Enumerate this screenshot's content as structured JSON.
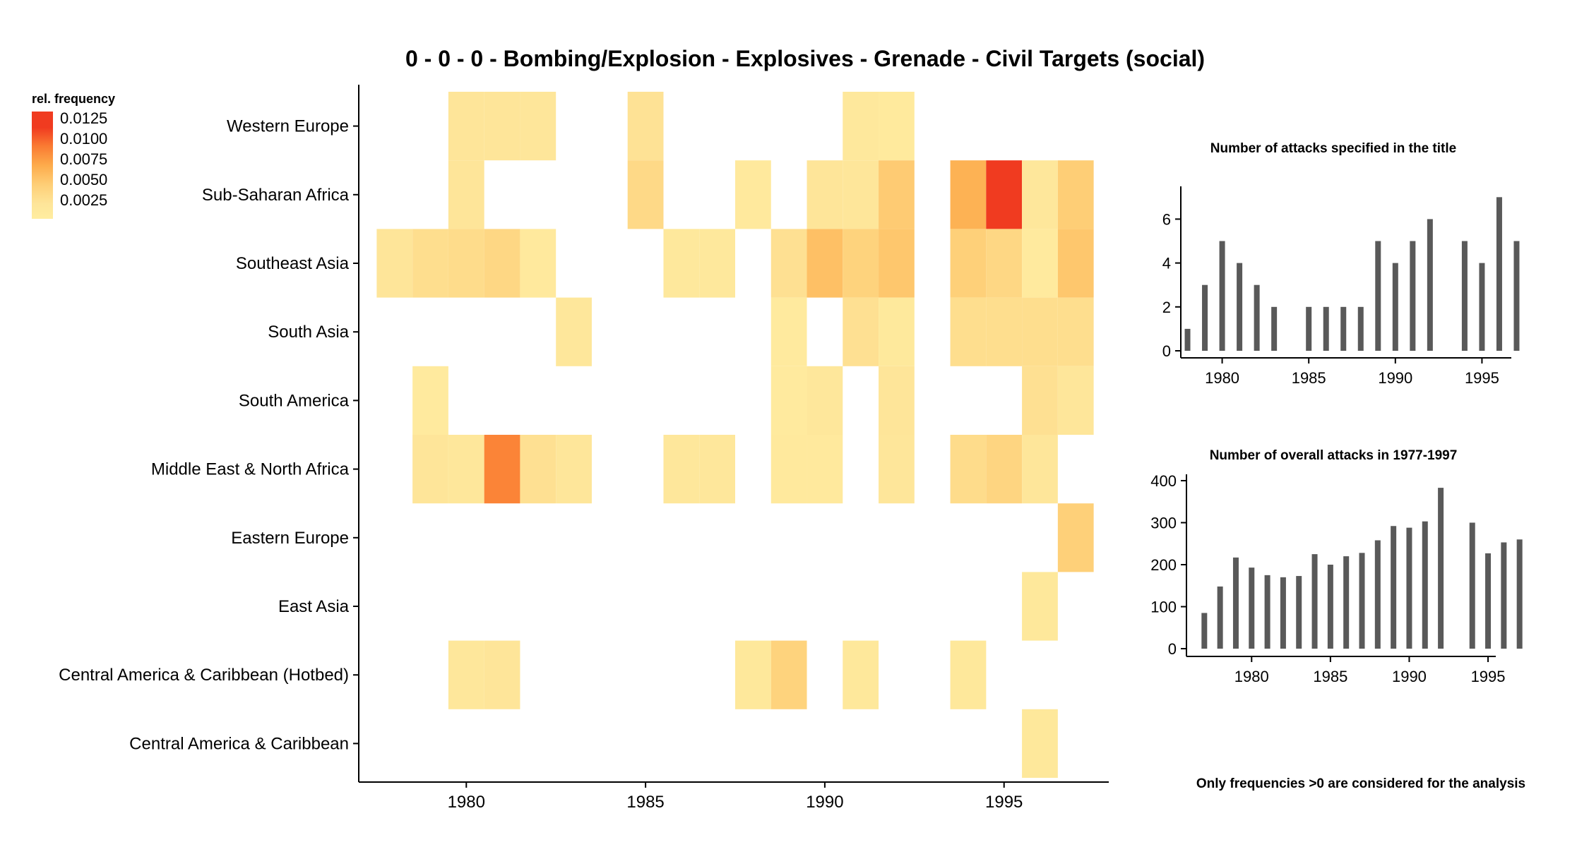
{
  "title": "0 - 0 - 0 - Bombing/Explosion - Explosives - Grenade - Civil Targets (social)",
  "footnote": "Only frequencies >0 are considered for the analysis",
  "legend": {
    "title": "rel. frequency",
    "labels": [
      "0.0125",
      "0.0100",
      "0.0075",
      "0.0050",
      "0.0025"
    ],
    "color_stops": [
      {
        "value": 0.0125,
        "color": "#f03b20"
      },
      {
        "value": 0.01,
        "color": "#fa7a32"
      },
      {
        "value": 0.0075,
        "color": "#fdab4b"
      },
      {
        "value": 0.005,
        "color": "#fece76"
      },
      {
        "value": 0.0025,
        "color": "#fee599"
      },
      {
        "value": 0.0005,
        "color": "#ffeda0"
      }
    ]
  },
  "chart_data": [
    {
      "type": "heatmap",
      "title": "0 - 0 - 0 - Bombing/Explosion - Explosives - Grenade - Civil Targets (social)",
      "xlabel": "",
      "ylabel": "",
      "xlim": [
        1977,
        1998
      ],
      "x_ticks": [
        1980,
        1985,
        1990,
        1995
      ],
      "legend_title": "rel. frequency",
      "legend_position": "top-left",
      "grid": false,
      "regions": [
        "Western Europe",
        "Sub-Saharan Africa",
        "Southeast Asia",
        "South Asia",
        "South America",
        "Middle East & North Africa",
        "Eastern Europe",
        "East Asia",
        "Central America & Caribbean (Hotbed)",
        "Central America & Caribbean"
      ],
      "cells": [
        {
          "region": "Western Europe",
          "year": 1980,
          "value": 0.0025
        },
        {
          "region": "Western Europe",
          "year": 1981,
          "value": 0.0025
        },
        {
          "region": "Western Europe",
          "year": 1982,
          "value": 0.0023
        },
        {
          "region": "Western Europe",
          "year": 1985,
          "value": 0.0028
        },
        {
          "region": "Western Europe",
          "year": 1991,
          "value": 0.0017
        },
        {
          "region": "Western Europe",
          "year": 1992,
          "value": 0.0013
        },
        {
          "region": "Sub-Saharan Africa",
          "year": 1980,
          "value": 0.0025
        },
        {
          "region": "Sub-Saharan Africa",
          "year": 1985,
          "value": 0.0038
        },
        {
          "region": "Sub-Saharan Africa",
          "year": 1988,
          "value": 0.0015
        },
        {
          "region": "Sub-Saharan Africa",
          "year": 1990,
          "value": 0.0025
        },
        {
          "region": "Sub-Saharan Africa",
          "year": 1991,
          "value": 0.0023
        },
        {
          "region": "Sub-Saharan Africa",
          "year": 1992,
          "value": 0.0052
        },
        {
          "region": "Sub-Saharan Africa",
          "year": 1994,
          "value": 0.007
        },
        {
          "region": "Sub-Saharan Africa",
          "year": 1995,
          "value": 0.0135
        },
        {
          "region": "Sub-Saharan Africa",
          "year": 1996,
          "value": 0.002
        },
        {
          "region": "Sub-Saharan Africa",
          "year": 1997,
          "value": 0.005
        },
        {
          "region": "Southeast Asia",
          "year": 1978,
          "value": 0.0025
        },
        {
          "region": "Southeast Asia",
          "year": 1979,
          "value": 0.0033
        },
        {
          "region": "Southeast Asia",
          "year": 1980,
          "value": 0.0035
        },
        {
          "region": "Southeast Asia",
          "year": 1981,
          "value": 0.004
        },
        {
          "region": "Southeast Asia",
          "year": 1982,
          "value": 0.0015
        },
        {
          "region": "Southeast Asia",
          "year": 1986,
          "value": 0.0017
        },
        {
          "region": "Southeast Asia",
          "year": 1987,
          "value": 0.0017
        },
        {
          "region": "Southeast Asia",
          "year": 1989,
          "value": 0.003
        },
        {
          "region": "Southeast Asia",
          "year": 1990,
          "value": 0.006
        },
        {
          "region": "Southeast Asia",
          "year": 1991,
          "value": 0.0045
        },
        {
          "region": "Southeast Asia",
          "year": 1992,
          "value": 0.0055
        },
        {
          "region": "Southeast Asia",
          "year": 1994,
          "value": 0.0048
        },
        {
          "region": "Southeast Asia",
          "year": 1995,
          "value": 0.004
        },
        {
          "region": "Southeast Asia",
          "year": 1996,
          "value": 0.0012
        },
        {
          "region": "Southeast Asia",
          "year": 1997,
          "value": 0.0055
        },
        {
          "region": "South Asia",
          "year": 1983,
          "value": 0.002
        },
        {
          "region": "South Asia",
          "year": 1989,
          "value": 0.0012
        },
        {
          "region": "South Asia",
          "year": 1991,
          "value": 0.003
        },
        {
          "region": "South Asia",
          "year": 1992,
          "value": 0.0016
        },
        {
          "region": "South Asia",
          "year": 1994,
          "value": 0.0033
        },
        {
          "region": "South Asia",
          "year": 1995,
          "value": 0.0033
        },
        {
          "region": "South Asia",
          "year": 1996,
          "value": 0.0033
        },
        {
          "region": "South Asia",
          "year": 1997,
          "value": 0.0033
        },
        {
          "region": "South America",
          "year": 1979,
          "value": 0.0012
        },
        {
          "region": "South America",
          "year": 1989,
          "value": 0.0012
        },
        {
          "region": "South America",
          "year": 1990,
          "value": 0.002
        },
        {
          "region": "South America",
          "year": 1992,
          "value": 0.0025
        },
        {
          "region": "South America",
          "year": 1996,
          "value": 0.003
        },
        {
          "region": "South America",
          "year": 1997,
          "value": 0.0022
        },
        {
          "region": "Middle East & North Africa",
          "year": 1979,
          "value": 0.0025
        },
        {
          "region": "Middle East & North Africa",
          "year": 1980,
          "value": 0.002
        },
        {
          "region": "Middle East & North Africa",
          "year": 1981,
          "value": 0.0095
        },
        {
          "region": "Middle East & North Africa",
          "year": 1982,
          "value": 0.003
        },
        {
          "region": "Middle East & North Africa",
          "year": 1983,
          "value": 0.0022
        },
        {
          "region": "Middle East & North Africa",
          "year": 1986,
          "value": 0.002
        },
        {
          "region": "Middle East & North Africa",
          "year": 1987,
          "value": 0.002
        },
        {
          "region": "Middle East & North Africa",
          "year": 1989,
          "value": 0.0015
        },
        {
          "region": "Middle East & North Africa",
          "year": 1990,
          "value": 0.0015
        },
        {
          "region": "Middle East & North Africa",
          "year": 1992,
          "value": 0.0022
        },
        {
          "region": "Middle East & North Africa",
          "year": 1994,
          "value": 0.0035
        },
        {
          "region": "Middle East & North Africa",
          "year": 1995,
          "value": 0.0042
        },
        {
          "region": "Middle East & North Africa",
          "year": 1996,
          "value": 0.0022
        },
        {
          "region": "Eastern Europe",
          "year": 1997,
          "value": 0.0048
        },
        {
          "region": "East Asia",
          "year": 1996,
          "value": 0.0018
        },
        {
          "region": "Central America & Caribbean (Hotbed)",
          "year": 1980,
          "value": 0.002
        },
        {
          "region": "Central America & Caribbean (Hotbed)",
          "year": 1981,
          "value": 0.0025
        },
        {
          "region": "Central America & Caribbean (Hotbed)",
          "year": 1988,
          "value": 0.0018
        },
        {
          "region": "Central America & Caribbean (Hotbed)",
          "year": 1989,
          "value": 0.0045
        },
        {
          "region": "Central America & Caribbean (Hotbed)",
          "year": 1991,
          "value": 0.0018
        },
        {
          "region": "Central America & Caribbean (Hotbed)",
          "year": 1994,
          "value": 0.0018
        },
        {
          "region": "Central America & Caribbean",
          "year": 1996,
          "value": 0.0018
        }
      ]
    },
    {
      "type": "bar",
      "title": "Number of attacks specified in the title",
      "xlabel": "",
      "ylabel": "",
      "xlim": [
        1977,
        1998
      ],
      "ylim": [
        0,
        7.3
      ],
      "x_ticks": [
        1980,
        1985,
        1990,
        1995
      ],
      "y_ticks": [
        0,
        2,
        4,
        6
      ],
      "x": [
        1978,
        1979,
        1980,
        1981,
        1982,
        1983,
        1985,
        1986,
        1987,
        1988,
        1989,
        1990,
        1991,
        1992,
        1994,
        1995,
        1996,
        1997
      ],
      "values": [
        1,
        3,
        5,
        4,
        3,
        2,
        2,
        2,
        2,
        2,
        5,
        4,
        5,
        6,
        5,
        4,
        7,
        5
      ]
    },
    {
      "type": "bar",
      "title": "Number of overall attacks in 1977-1997",
      "xlabel": "",
      "ylabel": "",
      "xlim": [
        1976,
        1998
      ],
      "ylim": [
        0,
        405
      ],
      "x_ticks": [
        1980,
        1985,
        1990,
        1995
      ],
      "y_ticks": [
        0,
        100,
        200,
        300,
        400
      ],
      "x": [
        1977,
        1978,
        1979,
        1980,
        1981,
        1982,
        1983,
        1984,
        1985,
        1986,
        1987,
        1988,
        1989,
        1990,
        1991,
        1992,
        1994,
        1995,
        1996,
        1997
      ],
      "values": [
        85,
        148,
        217,
        193,
        175,
        170,
        173,
        225,
        200,
        220,
        228,
        258,
        292,
        288,
        303,
        383,
        300,
        227,
        253,
        260
      ]
    }
  ]
}
